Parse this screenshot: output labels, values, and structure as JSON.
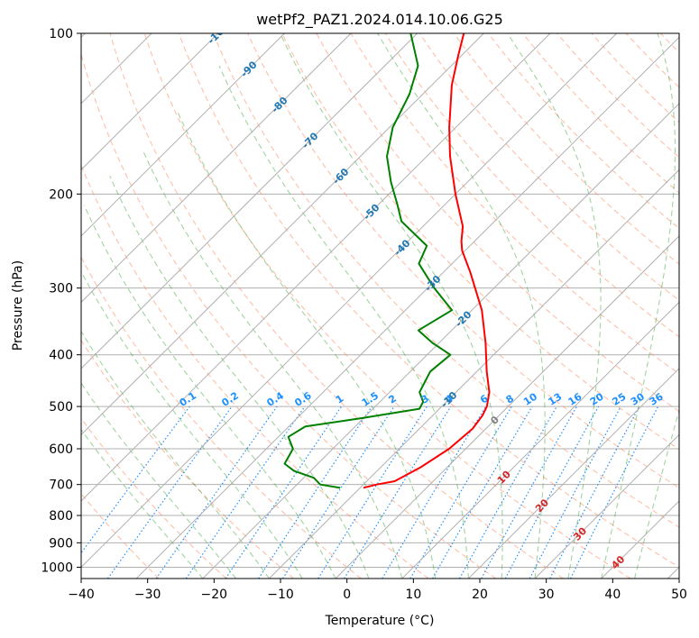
{
  "chart_data": {
    "type": "line",
    "title": "wetPf2_PAZ1.2024.014.10.06.G25",
    "xlabel": "Temperature (°C)",
    "ylabel": "Pressure (hPa)",
    "xlim": [
      -40,
      50
    ],
    "ylim": [
      1050,
      100
    ],
    "y_scale": "log",
    "grid": true,
    "x_ticks": [
      -40,
      -30,
      -20,
      -10,
      0,
      10,
      20,
      30,
      40,
      50
    ],
    "y_ticks": [
      100,
      200,
      300,
      400,
      500,
      600,
      700,
      800,
      900,
      1000
    ],
    "skew": 35,
    "colors": {
      "temperature": "#ff0000",
      "dewpoint": "#008000",
      "dry_adiabat": "#ff7f50",
      "moist_adiabat": "#2ca02c",
      "isotherm_label": "#1f77b4",
      "mixing_ratio": "#1e90ff",
      "warm_label": "#d62728",
      "zero_label": "#808080",
      "grid": "#b0b0b0"
    },
    "series": [
      {
        "role": "temperature",
        "points": [
          {
            "p": 710,
            "t": -9.5
          },
          {
            "p": 700,
            "t": -8.0
          },
          {
            "p": 690,
            "t": -5.8
          },
          {
            "p": 650,
            "t": -4.0
          },
          {
            "p": 600,
            "t": -2.5
          },
          {
            "p": 550,
            "t": -2.0
          },
          {
            "p": 520,
            "t": -2.5
          },
          {
            "p": 500,
            "t": -3.2
          },
          {
            "p": 470,
            "t": -5.0
          },
          {
            "p": 430,
            "t": -8.5
          },
          {
            "p": 380,
            "t": -13.0
          },
          {
            "p": 330,
            "t": -18.5
          },
          {
            "p": 280,
            "t": -26.0
          },
          {
            "p": 255,
            "t": -30.5
          },
          {
            "p": 245,
            "t": -32.0
          },
          {
            "p": 230,
            "t": -34.0
          },
          {
            "p": 200,
            "t": -40.0
          },
          {
            "p": 170,
            "t": -46.5
          },
          {
            "p": 150,
            "t": -51.0
          },
          {
            "p": 125,
            "t": -57.0
          },
          {
            "p": 110,
            "t": -60.5
          },
          {
            "p": 100,
            "t": -63.0
          }
        ]
      },
      {
        "role": "dewpoint",
        "points": [
          {
            "p": 710,
            "t": -13.0
          },
          {
            "p": 700,
            "t": -16.5
          },
          {
            "p": 680,
            "t": -18.5
          },
          {
            "p": 660,
            "t": -22.5
          },
          {
            "p": 640,
            "t": -25.0
          },
          {
            "p": 600,
            "t": -26.0
          },
          {
            "p": 570,
            "t": -28.5
          },
          {
            "p": 545,
            "t": -27.5
          },
          {
            "p": 525,
            "t": -20.0
          },
          {
            "p": 505,
            "t": -13.0
          },
          {
            "p": 490,
            "t": -13.5
          },
          {
            "p": 470,
            "t": -15.5
          },
          {
            "p": 430,
            "t": -17.0
          },
          {
            "p": 400,
            "t": -16.5
          },
          {
            "p": 380,
            "t": -21.0
          },
          {
            "p": 360,
            "t": -25.0
          },
          {
            "p": 330,
            "t": -23.0
          },
          {
            "p": 300,
            "t": -29.0
          },
          {
            "p": 270,
            "t": -35.0
          },
          {
            "p": 250,
            "t": -36.5
          },
          {
            "p": 225,
            "t": -44.0
          },
          {
            "p": 210,
            "t": -47.0
          },
          {
            "p": 190,
            "t": -51.5
          },
          {
            "p": 170,
            "t": -56.0
          },
          {
            "p": 150,
            "t": -59.5
          },
          {
            "p": 130,
            "t": -62.0
          },
          {
            "p": 115,
            "t": -65.0
          },
          {
            "p": 100,
            "t": -71.0
          }
        ]
      }
    ],
    "isotherm_labels": [
      -100,
      -90,
      -80,
      -70,
      -60,
      -50,
      -40,
      -30,
      -20,
      -10,
      0,
      10,
      20,
      30,
      40
    ],
    "mixing_ratio_labels": [
      "0.1",
      "0.2",
      "0.4",
      "0.6",
      "1",
      "1.5",
      "2",
      "3",
      "4",
      "6",
      "8",
      "10",
      "13",
      "16",
      "20",
      "25",
      "30",
      "36"
    ],
    "mixing_ratio_label_pressure": 500
  }
}
